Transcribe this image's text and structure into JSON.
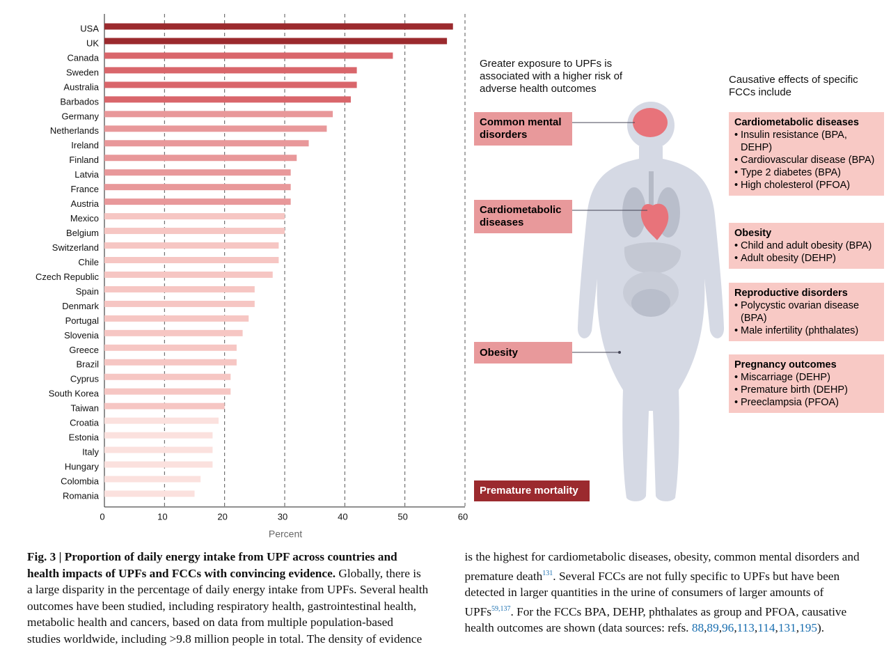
{
  "chart_data": {
    "type": "hbar",
    "xlabel": "Percent",
    "categories": [
      "USA",
      "UK",
      "Canada",
      "Sweden",
      "Australia",
      "Barbados",
      "Germany",
      "Netherlands",
      "Ireland",
      "Finland",
      "Latvia",
      "France",
      "Austria",
      "Mexico",
      "Belgium",
      "Switzerland",
      "Chile",
      "Czech Republic",
      "Spain",
      "Denmark",
      "Portugal",
      "Slovenia",
      "Greece",
      "Brazil",
      "Cyprus",
      "South Korea",
      "Taiwan",
      "Croatia",
      "Estonia",
      "Italy",
      "Hungary",
      "Colombia",
      "Romania"
    ],
    "values": [
      58,
      57,
      48,
      42,
      42,
      41,
      38,
      37,
      34,
      32,
      31,
      31,
      31,
      30,
      30,
      29,
      29,
      28,
      25,
      25,
      24,
      23,
      22,
      22,
      21,
      21,
      20,
      19,
      18,
      18,
      18,
      16,
      15
    ],
    "colors": [
      "#9b2a2e",
      "#9b2a2e",
      "#d9666b",
      "#d9666b",
      "#d9666b",
      "#d9666b",
      "#e8989a",
      "#e8989a",
      "#e8989a",
      "#e8989a",
      "#e8989a",
      "#e8989a",
      "#e8989a",
      "#f6c6c3",
      "#f6c6c3",
      "#f6c6c3",
      "#f6c6c3",
      "#f6c6c3",
      "#f6c6c3",
      "#f6c6c3",
      "#f6c6c3",
      "#f6c6c3",
      "#f6c6c3",
      "#f6c6c3",
      "#f6c6c3",
      "#f6c6c3",
      "#f6c6c3",
      "#fbe1de",
      "#fbe1de",
      "#fbe1de",
      "#fbe1de",
      "#fbe1de",
      "#fbe1de"
    ],
    "xlim": [
      0,
      60
    ],
    "xticks": [
      0,
      10,
      20,
      30,
      40,
      50,
      60
    ],
    "grid": true
  },
  "diagram": {
    "intro": "Greater exposure to UPFs is associated with a higher risk of adverse health outcomes",
    "outcomes": [
      "Common mental disorders",
      "Cardiometabolic diseases",
      "Obesity",
      "Premature mortality"
    ],
    "fcc_intro": "Causative effects of specific FCCs include",
    "fcc_groups": [
      {
        "title": "Cardiometabolic diseases",
        "items": [
          "Insulin resistance (BPA, DEHP)",
          "Cardiovascular disease (BPA)",
          "Type 2 diabetes (BPA)",
          "High cholesterol (PFOA)"
        ]
      },
      {
        "title": "Obesity",
        "items": [
          "Child and adult obesity (BPA)",
          "Adult obesity (DEHP)"
        ]
      },
      {
        "title": "Reproductive disorders",
        "items": [
          "Polycystic ovarian disease (BPA)",
          "Male infertility (phthalates)"
        ]
      },
      {
        "title": "Pregnancy outcomes",
        "items": [
          "Miscarriage (DEHP)",
          "Premature birth (DEHP)",
          "Preeclampsia (PFOA)"
        ]
      }
    ]
  },
  "caption": {
    "label": "Fig. 3 |",
    "title": "Proportion of daily energy intake from UPF across countries and health impacts of UPFs and FCCs with convincing evidence.",
    "text1": " Globally, there is a large disparity in the percentage of daily energy intake from UPFs. Several health outcomes have been studied, including respiratory health, gastrointestinal health, metabolic health and cancers, based on data from multiple population-based studies worldwide, including >9.8 million people in total. The density of evidence is the highest for cardiometabolic diseases, obesity, common mental disorders and premature death",
    "sup1": "131",
    "text2": ". Several FCCs are not fully specific to UPFs but have been detected in larger quantities in the urine of consumers of larger amounts of UPFs",
    "sup2": "59,137",
    "text3": ". For the FCCs BPA, DEHP, phthalates as group and PFOA, causative health outcomes are shown (data sources: refs. ",
    "refs": [
      "88",
      "89",
      "96",
      "113",
      "114",
      "131",
      "195"
    ],
    "text4": ")."
  }
}
